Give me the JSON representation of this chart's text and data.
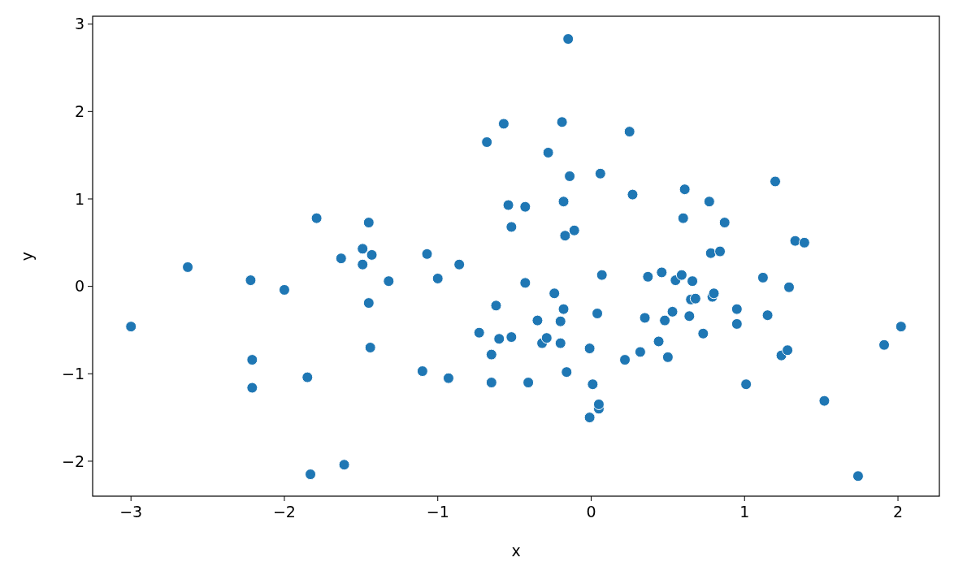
{
  "chart_data": {
    "type": "scatter",
    "xlabel": "x",
    "ylabel": "y",
    "marker": "circle",
    "xlim": [
      -3.25,
      2.27
    ],
    "ylim": [
      -2.4,
      3.09
    ],
    "xticks": [
      {
        "value": -3,
        "label": "−3"
      },
      {
        "value": -2,
        "label": "−2"
      },
      {
        "value": -1,
        "label": "−1"
      },
      0,
      1,
      2
    ],
    "yticks": [
      {
        "value": -2,
        "label": "−2"
      },
      {
        "value": -1,
        "label": "−1"
      },
      0,
      1,
      2,
      3
    ],
    "series": [
      {
        "color": "#1f77b4",
        "x": [
          -3.0,
          -2.63,
          -2.22,
          -2.21,
          -2.21,
          -2.0,
          -1.85,
          -1.83,
          -1.79,
          -1.63,
          -1.61,
          -1.49,
          -1.49,
          -1.45,
          -1.45,
          -1.44,
          -1.43,
          -1.32,
          -1.1,
          -1.07,
          -1.0,
          -0.93,
          -0.86,
          -0.73,
          -0.68,
          -0.65,
          -0.65,
          -0.62,
          -0.6,
          -0.57,
          -0.54,
          -0.52,
          -0.52,
          -0.43,
          -0.43,
          -0.41,
          -0.35,
          -0.32,
          -0.29,
          -0.28,
          -0.24,
          -0.2,
          -0.2,
          -0.19,
          -0.18,
          -0.18,
          -0.17,
          -0.16,
          -0.15,
          -0.14,
          -0.11,
          -0.01,
          -0.01,
          0.01,
          0.04,
          0.05,
          0.05,
          0.06,
          0.07,
          0.22,
          0.25,
          0.27,
          0.32,
          0.35,
          0.37,
          0.44,
          0.46,
          0.48,
          0.5,
          0.53,
          0.55,
          0.59,
          0.6,
          0.61,
          0.64,
          0.65,
          0.66,
          0.68,
          0.73,
          0.77,
          0.78,
          0.79,
          0.8,
          0.84,
          0.87,
          0.95,
          0.95,
          1.01,
          1.12,
          1.15,
          1.2,
          1.24,
          1.28,
          1.29,
          1.33,
          1.39,
          1.52,
          1.74,
          1.91,
          2.02
        ],
        "values": [
          -0.46,
          0.22,
          0.07,
          -0.84,
          -1.16,
          -0.04,
          -1.04,
          -2.15,
          0.78,
          0.32,
          -2.04,
          0.43,
          0.25,
          0.73,
          -0.19,
          -0.7,
          0.36,
          0.06,
          -0.97,
          0.37,
          0.09,
          -1.05,
          0.25,
          -0.53,
          1.65,
          -0.78,
          -1.1,
          -0.22,
          -0.6,
          1.86,
          0.93,
          0.68,
          -0.58,
          0.91,
          0.04,
          -1.1,
          -0.39,
          -0.65,
          -0.59,
          1.53,
          -0.08,
          -0.4,
          -0.65,
          1.88,
          0.97,
          -0.26,
          0.58,
          -0.98,
          2.83,
          1.26,
          0.64,
          -1.5,
          -0.71,
          -1.12,
          -0.31,
          -1.4,
          -1.35,
          1.29,
          0.13,
          -0.84,
          1.77,
          1.05,
          -0.75,
          -0.36,
          0.11,
          -0.63,
          0.16,
          -0.39,
          -0.81,
          -0.29,
          0.07,
          0.13,
          0.78,
          1.11,
          -0.34,
          -0.15,
          0.06,
          -0.14,
          -0.54,
          0.97,
          0.38,
          -0.12,
          -0.08,
          0.4,
          0.73,
          -0.26,
          -0.43,
          -1.12,
          0.1,
          -0.33,
          1.2,
          -0.79,
          -0.73,
          -0.01,
          0.52,
          0.5,
          -1.31,
          -2.17,
          -0.67,
          -0.46
        ]
      }
    ]
  }
}
